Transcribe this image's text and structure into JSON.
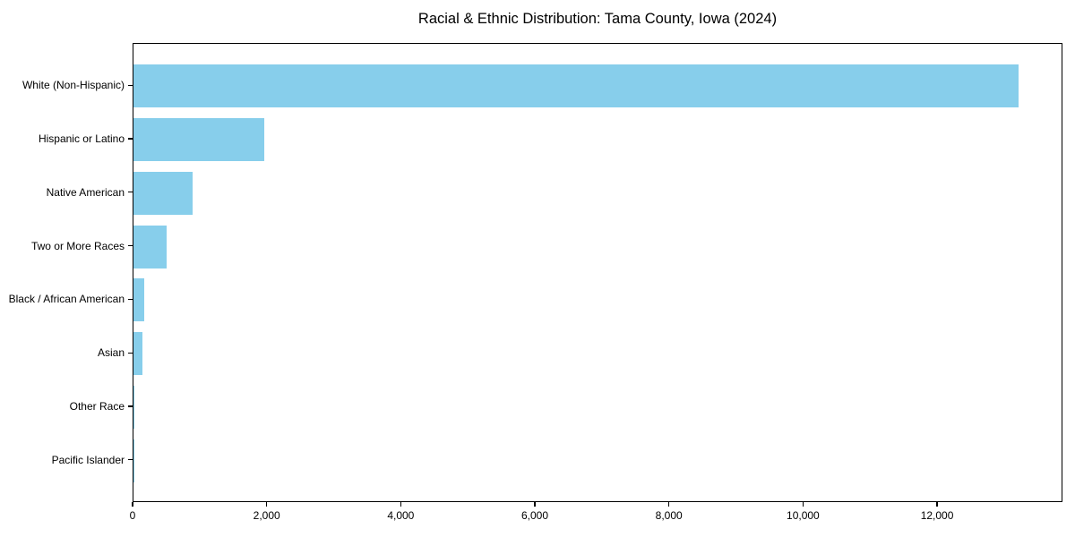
{
  "figure": {
    "background_color": "#ffffff",
    "spine_color": "#000000",
    "text_color": "#000000"
  },
  "chart_data": {
    "type": "bar",
    "orientation": "horizontal",
    "title": "Racial & Ethnic Distribution: Tama County, Iowa (2024)",
    "xlabel": "",
    "ylabel": "",
    "categories": [
      "White (Non-Hispanic)",
      "Hispanic or Latino",
      "Native American",
      "Two or More Races",
      "Black / African American",
      "Asian",
      "Other Race",
      "Pacific Islander"
    ],
    "values": [
      13200,
      1950,
      885,
      495,
      160,
      130,
      15,
      5
    ],
    "bar_color": "#87CEEB",
    "xlim": [
      0,
      13870
    ],
    "ylim": [
      -0.79,
      7.79
    ],
    "bar_height_fraction": 0.8,
    "x_ticks": [
      0,
      2000,
      4000,
      6000,
      8000,
      10000,
      12000
    ],
    "x_tick_labels": [
      "0",
      "2,000",
      "4,000",
      "6,000",
      "8,000",
      "10,000",
      "12,000"
    ],
    "grid": false,
    "legend": null
  }
}
